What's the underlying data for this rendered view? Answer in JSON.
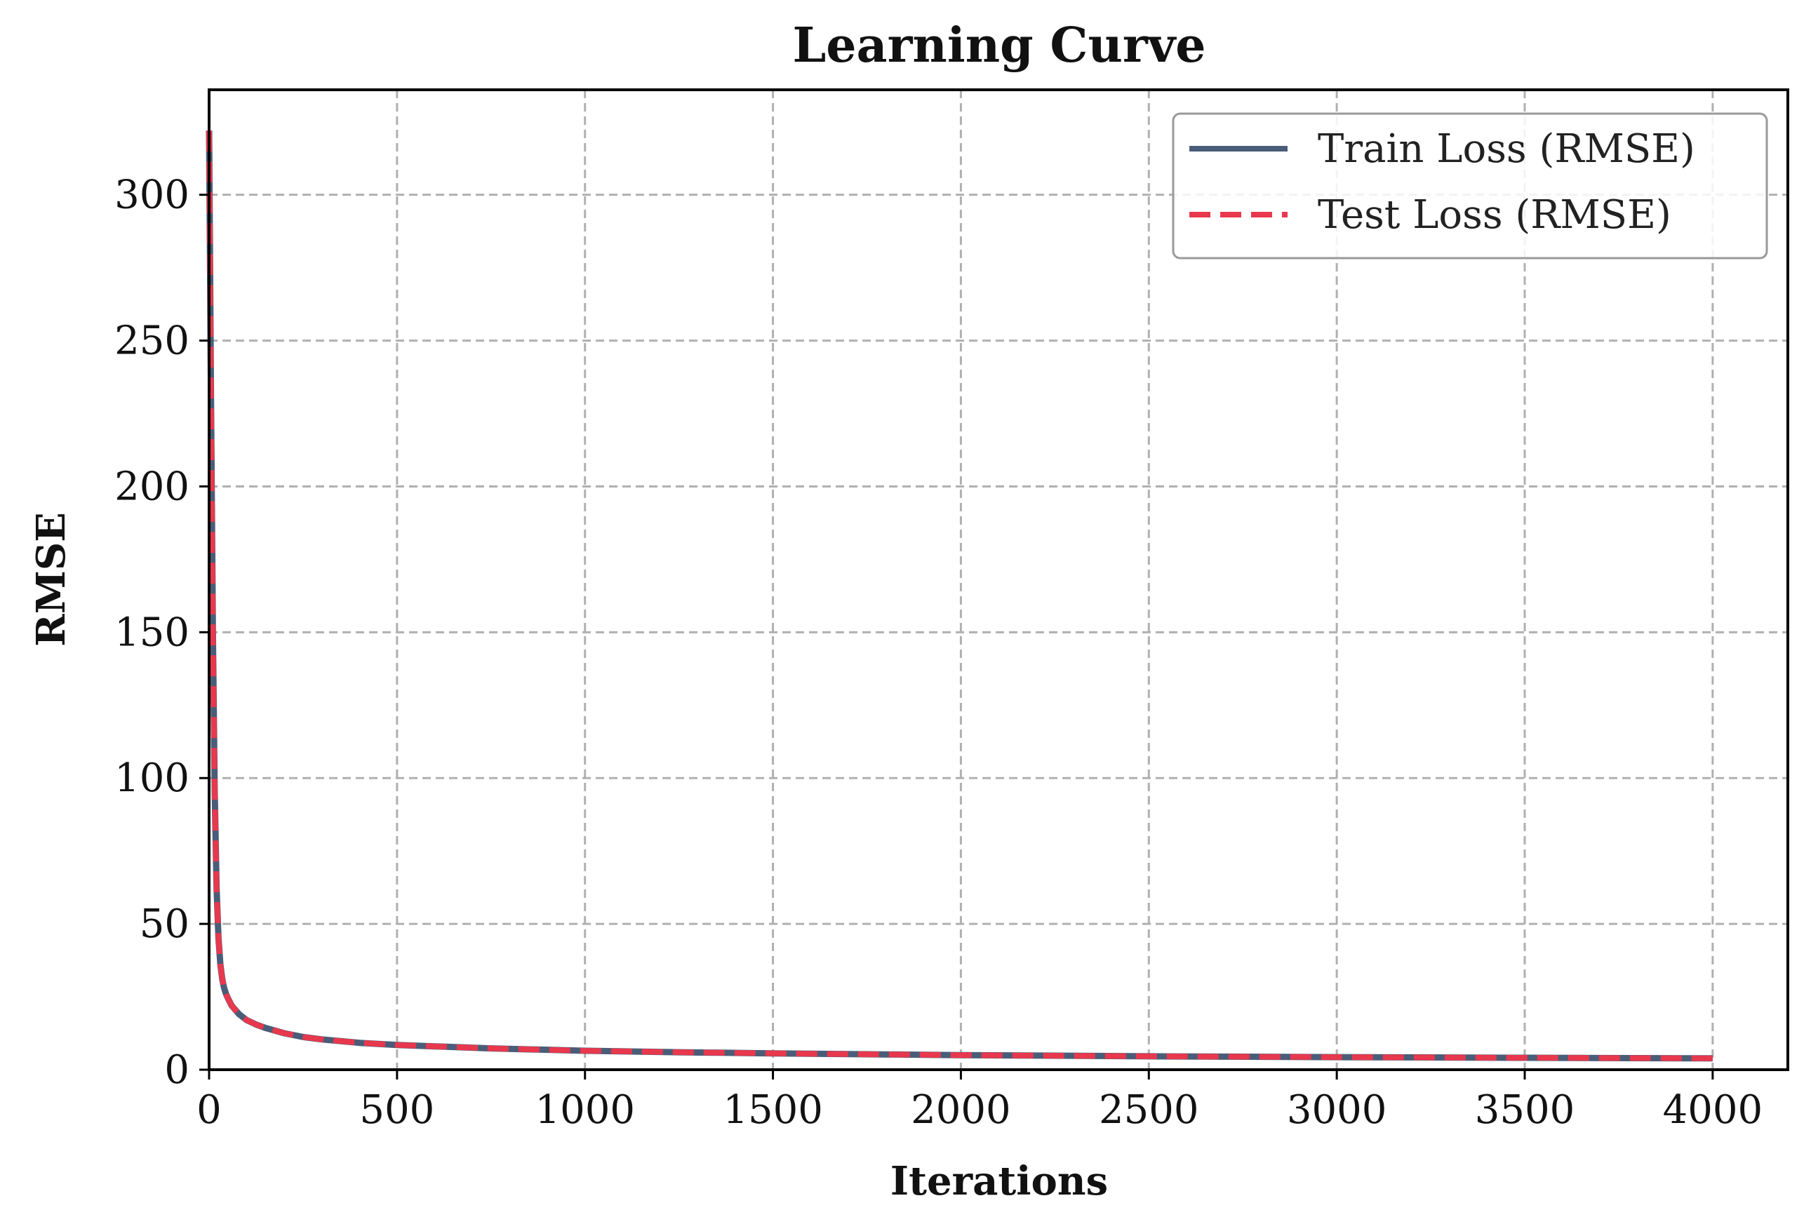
{
  "chart_data": {
    "type": "line",
    "title": "Learning Curve",
    "xlabel": "Iterations",
    "ylabel": "RMSE",
    "xlim": [
      0,
      4200
    ],
    "ylim": [
      0,
      336
    ],
    "xticks": [
      0,
      500,
      1000,
      1500,
      2000,
      2500,
      3000,
      3500,
      4000
    ],
    "yticks": [
      0,
      50,
      100,
      150,
      200,
      250,
      300
    ],
    "grid": true,
    "grid_style": "dashed",
    "legend_position": "top-right",
    "x": [
      0,
      5,
      10,
      15,
      20,
      25,
      30,
      35,
      40,
      45,
      50,
      60,
      70,
      80,
      100,
      125,
      150,
      200,
      250,
      300,
      400,
      500,
      600,
      750,
      1000,
      1250,
      1500,
      1750,
      2000,
      2500,
      3000,
      3500,
      4000
    ],
    "series": [
      {
        "name": "Train Loss (RMSE)",
        "color": "#4a5d78",
        "line_style": "solid",
        "values": [
          322,
          230,
          150,
          95,
          62,
          45,
          36,
          31,
          28,
          26,
          24.5,
          22,
          20.5,
          19,
          17,
          15.5,
          14.3,
          12.5,
          11.2,
          10.4,
          9.2,
          8.5,
          8.0,
          7.3,
          6.5,
          6.0,
          5.6,
          5.3,
          5.0,
          4.6,
          4.3,
          4.1,
          3.9
        ]
      },
      {
        "name": "Test Loss (RMSE)",
        "color": "#e8384d",
        "line_style": "dashed",
        "values": [
          322,
          230,
          150,
          95,
          62,
          45,
          36,
          31,
          28,
          26,
          24.5,
          22,
          20.5,
          19,
          17,
          15.5,
          14.3,
          12.5,
          11.2,
          10.4,
          9.2,
          8.5,
          8.0,
          7.3,
          6.5,
          6.0,
          5.6,
          5.3,
          5.0,
          4.6,
          4.3,
          4.1,
          3.9
        ]
      }
    ]
  }
}
